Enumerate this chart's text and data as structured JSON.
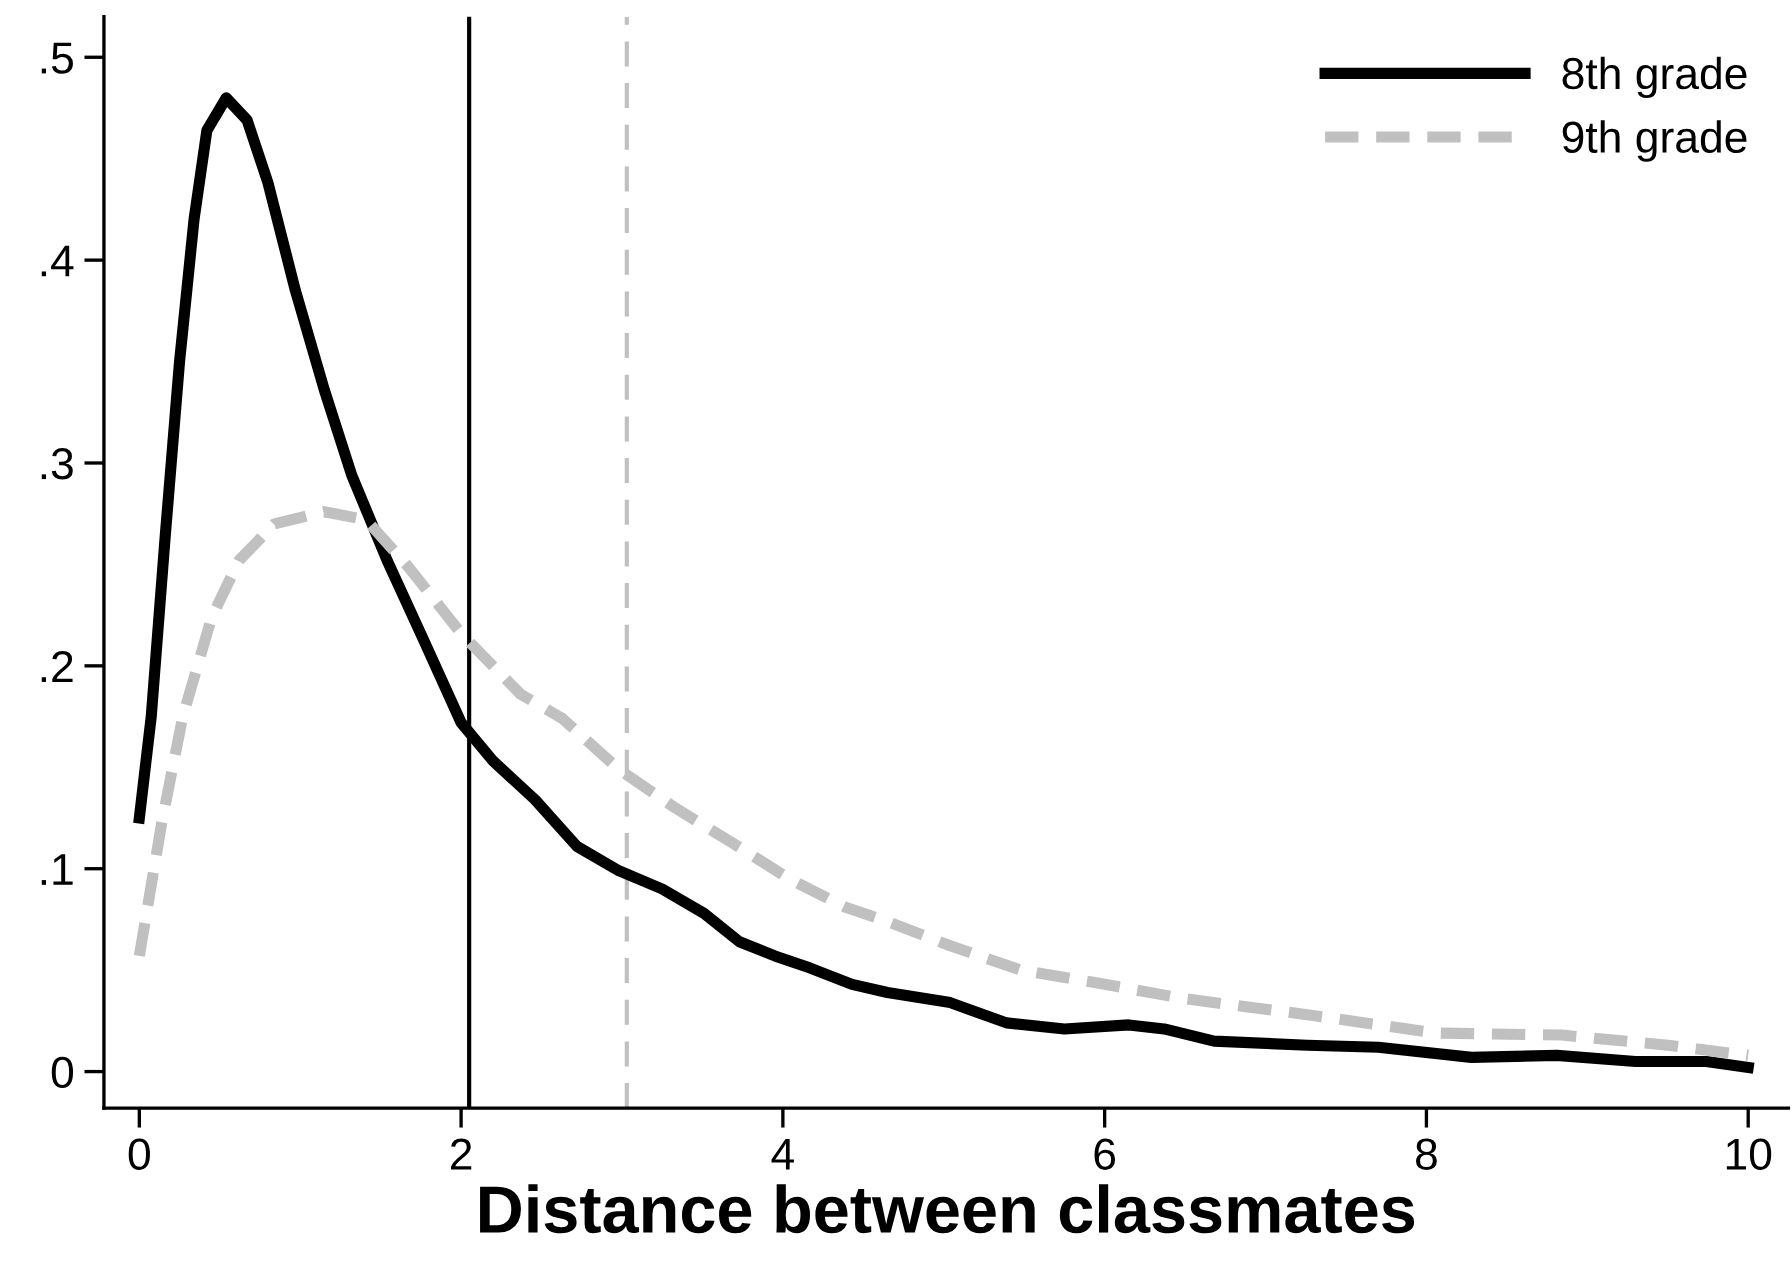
{
  "chart_data": {
    "type": "line",
    "xlabel": "Distance between classmates",
    "xlim": [
      -0.22,
      10.25
    ],
    "ylim": [
      -0.018,
      0.52
    ],
    "xticks": [
      0,
      2,
      4,
      6,
      8,
      10
    ],
    "yticks": [
      0,
      {
        "value": 0.1,
        "label": ".1"
      },
      {
        "value": 0.2,
        "label": ".2"
      },
      {
        "value": 0.3,
        "label": ".3"
      },
      {
        "value": 0.4,
        "label": ".4"
      },
      {
        "value": 0.5,
        "label": ".5"
      }
    ],
    "grid": false,
    "legend": "top right",
    "series": [
      {
        "name": "8th grade",
        "color": "#000000",
        "line_style": "solid",
        "x": [
          0,
          0.074,
          0.16,
          0.25,
          0.34,
          0.42,
          0.54,
          0.67,
          0.8,
          0.97,
          1.15,
          1.32,
          1.54,
          1.76,
          2.0,
          2.2,
          2.46,
          2.72,
          2.98,
          3.25,
          3.51,
          3.73,
          3.95,
          4.17,
          4.43,
          4.65,
          5.04,
          5.39,
          5.75,
          6.15,
          6.37,
          6.68,
          7.26,
          7.7,
          8.28,
          8.81,
          9.3,
          9.74,
          10.0
        ],
        "values": [
          0.125,
          0.175,
          0.263,
          0.35,
          0.42,
          0.464,
          0.48,
          0.469,
          0.438,
          0.385,
          0.336,
          0.294,
          0.252,
          0.214,
          0.172,
          0.153,
          0.134,
          0.111,
          0.099,
          0.09,
          0.078,
          0.064,
          0.057,
          0.051,
          0.043,
          0.039,
          0.034,
          0.024,
          0.021,
          0.023,
          0.021,
          0.015,
          0.013,
          0.012,
          0.007,
          0.008,
          0.005,
          0.005,
          0.002
        ]
      },
      {
        "name": "9th grade",
        "color": "#c0c0c0",
        "line_style": "dashed",
        "x": [
          0,
          0.14,
          0.27,
          0.45,
          0.62,
          0.84,
          1.15,
          1.41,
          1.67,
          2.0,
          2.37,
          2.63,
          2.98,
          3.33,
          3.68,
          4.04,
          4.39,
          4.65,
          5.04,
          5.48,
          5.93,
          6.49,
          7.26,
          8.06,
          8.84,
          9.5,
          10.0
        ],
        "values": [
          0.057,
          0.123,
          0.175,
          0.224,
          0.252,
          0.27,
          0.276,
          0.272,
          0.249,
          0.216,
          0.186,
          0.174,
          0.149,
          0.13,
          0.113,
          0.095,
          0.081,
          0.074,
          0.062,
          0.05,
          0.044,
          0.036,
          0.028,
          0.019,
          0.018,
          0.013,
          0.008
        ]
      }
    ],
    "ref_lines": [
      {
        "axis": "x",
        "value": 2.05,
        "label": null,
        "color": "#000000",
        "line_style": "solid"
      },
      {
        "axis": "x",
        "value": 3.03,
        "label": null,
        "color": "#c0c0c0",
        "line_style": "dashed"
      }
    ]
  }
}
